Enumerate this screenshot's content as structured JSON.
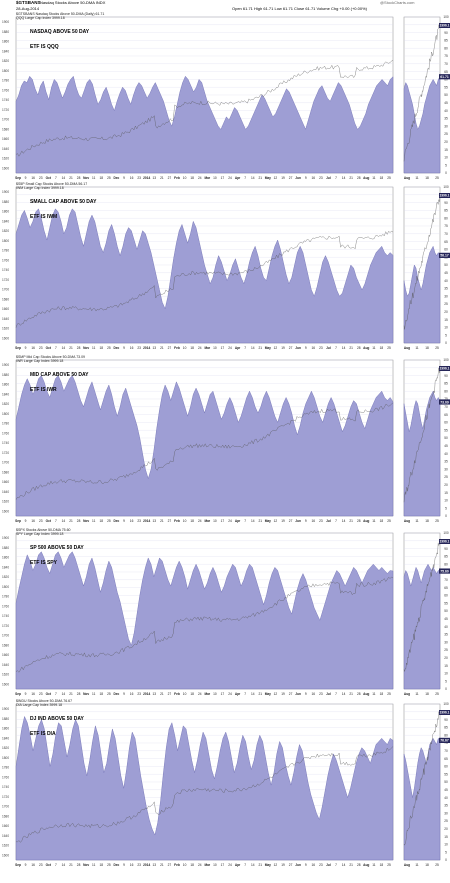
{
  "header": {
    "symbol": "$GTSBANS",
    "description": "Nasdaq Stocks Above 50-DMA  INDX",
    "date": "28-Aug-2014",
    "ohlc": "Open 61.71  High 61.71  Low 61.71  Close 61.71  Volume  Chg +0.00 (+0.00%)",
    "brand": "@StockCharts.com"
  },
  "colors": {
    "fill": "#9e9ed4",
    "fill_edge": "#6b6bb0",
    "price": "#555555",
    "grid": "#d8d8ee",
    "badge": "#262659"
  },
  "chart_data": [
    {
      "type": "area",
      "title": "NASDAQ ABOVE 50 DAY",
      "subtitle": "ETF IS QQQ",
      "legend": [
        "$GTSBANS Nasdaq Stocks Above 50-DMA (Daily) 61.71",
        "QQQ Large Cap Index 3999.18"
      ],
      "ylim": [
        0,
        100
      ],
      "right_ticks": [
        0,
        5,
        10,
        15,
        20,
        25,
        30,
        35,
        40,
        45,
        50,
        55,
        60,
        65,
        70,
        75,
        80,
        85,
        90,
        95,
        100
      ],
      "left_ticks": [
        1600,
        1620,
        1640,
        1660,
        1680,
        1700,
        1720,
        1740,
        1760,
        1780,
        1800,
        1820,
        1840,
        1860,
        1880,
        1900
      ],
      "last_value": "61.71",
      "price_label": "1996.1",
      "values": [
        46,
        50,
        56,
        59,
        58,
        62,
        60,
        54,
        50,
        56,
        59,
        52,
        47,
        55,
        60,
        58,
        53,
        48,
        52,
        57,
        60,
        62,
        55,
        50,
        48,
        53,
        58,
        60,
        57,
        50,
        44,
        47,
        52,
        55,
        50,
        44,
        40,
        46,
        51,
        55,
        53,
        48,
        44,
        50,
        55,
        58,
        56,
        52,
        48,
        51,
        55,
        58,
        54,
        50,
        46,
        40,
        34,
        30,
        36,
        44,
        52,
        58,
        62,
        60,
        56,
        52,
        55,
        60,
        58,
        52,
        46,
        42,
        38,
        34,
        30,
        28,
        32,
        36,
        34,
        38,
        42,
        40,
        36,
        32,
        28,
        30,
        34,
        38,
        42,
        46,
        50,
        48,
        44,
        40,
        36,
        38,
        42,
        46,
        50,
        54,
        52,
        48,
        44,
        40,
        36,
        32,
        28,
        34,
        40,
        46,
        50,
        54,
        56,
        52,
        48,
        46,
        50,
        54,
        58,
        56,
        52,
        48,
        44,
        38,
        32,
        28,
        30,
        34,
        38,
        44,
        48,
        52,
        56,
        58,
        60,
        58,
        56,
        60,
        61.71
      ]
    },
    {
      "type": "area",
      "title": "SMALL CAP ABOVE 50 DAY",
      "subtitle": "ETF IS IWM",
      "legend": [
        "$S5P Small Cap Stocks Above 50-DMA 56.17",
        "IWM Large Cap Index 3999.18"
      ],
      "ylim": [
        0,
        100
      ],
      "right_ticks": [
        0,
        5,
        10,
        15,
        20,
        25,
        30,
        35,
        40,
        45,
        50,
        55,
        60,
        65,
        70,
        75,
        80,
        85,
        90,
        95,
        100
      ],
      "left_ticks": [
        1600,
        1620,
        1640,
        1660,
        1680,
        1700,
        1720,
        1740,
        1760,
        1780,
        1800,
        1820,
        1840,
        1860,
        1880,
        1900
      ],
      "last_value": "56.17",
      "price_label": "1996.1",
      "values": [
        70,
        76,
        82,
        85,
        80,
        74,
        78,
        84,
        86,
        80,
        72,
        66,
        74,
        82,
        86,
        84,
        78,
        70,
        74,
        82,
        86,
        84,
        76,
        68,
        62,
        70,
        78,
        82,
        78,
        70,
        62,
        58,
        64,
        72,
        76,
        70,
        62,
        56,
        62,
        70,
        74,
        72,
        66,
        60,
        66,
        72,
        70,
        64,
        58,
        50,
        42,
        34,
        26,
        22,
        30,
        42,
        54,
        64,
        72,
        76,
        70,
        64,
        70,
        78,
        74,
        66,
        58,
        50,
        44,
        38,
        42,
        50,
        56,
        52,
        46,
        40,
        44,
        50,
        54,
        48,
        42,
        38,
        44,
        52,
        58,
        62,
        56,
        48,
        42,
        40,
        48,
        56,
        62,
        66,
        60,
        52,
        44,
        38,
        42,
        50,
        58,
        62,
        58,
        50,
        42,
        34,
        30,
        36,
        44,
        52,
        56,
        52,
        46,
        40,
        34,
        30,
        32,
        38,
        44,
        50,
        48,
        42,
        38,
        34,
        38,
        44,
        50,
        54,
        58,
        60,
        62,
        58,
        56,
        58,
        56.17
      ]
    },
    {
      "type": "area",
      "title": "MID CAP ABOVE 50 DAY",
      "subtitle": "ETF IS IWR",
      "legend": [
        "$SMP Mid Cap Stocks Above 50-DMA 73.09",
        "IWR Large Cap Index 3999.18"
      ],
      "ylim": [
        0,
        100
      ],
      "right_ticks": [
        0,
        5,
        10,
        15,
        20,
        25,
        30,
        35,
        40,
        45,
        50,
        55,
        60,
        65,
        70,
        75,
        80,
        85,
        90,
        95,
        100
      ],
      "left_ticks": [
        1600,
        1620,
        1640,
        1660,
        1680,
        1700,
        1720,
        1740,
        1760,
        1780,
        1800,
        1820,
        1840,
        1860,
        1880,
        1900
      ],
      "last_value": "73.09",
      "price_label": "1996.1",
      "values": [
        62,
        70,
        78,
        84,
        88,
        84,
        78,
        82,
        88,
        90,
        86,
        80,
        76,
        82,
        88,
        90,
        86,
        80,
        84,
        88,
        90,
        86,
        80,
        74,
        70,
        76,
        82,
        86,
        80,
        74,
        68,
        74,
        80,
        84,
        78,
        70,
        64,
        70,
        78,
        82,
        76,
        70,
        64,
        58,
        50,
        40,
        30,
        24,
        30,
        42,
        56,
        68,
        78,
        84,
        80,
        74,
        80,
        86,
        82,
        76,
        70,
        64,
        70,
        78,
        82,
        78,
        72,
        66,
        72,
        78,
        80,
        74,
        68,
        62,
        66,
        72,
        76,
        72,
        66,
        60,
        64,
        70,
        76,
        80,
        76,
        70,
        66,
        70,
        76,
        80,
        76,
        70,
        64,
        60,
        66,
        72,
        76,
        72,
        66,
        58,
        52,
        58,
        66,
        72,
        76,
        80,
        76,
        70,
        64,
        60,
        66,
        72,
        76,
        72,
        66,
        60,
        54,
        58,
        64,
        70,
        74,
        72,
        66,
        60,
        56,
        62,
        68,
        72,
        76,
        78,
        80,
        76,
        74,
        76,
        73.09
      ]
    },
    {
      "type": "area",
      "title": "SP 500 ABOVE 50 DAY",
      "subtitle": "ETF IS SPY",
      "legend": [
        "$SPX Stocks Above 50-DMA 75.60",
        "SPY Large Cap Index 3999.18"
      ],
      "ylim": [
        0,
        100
      ],
      "right_ticks": [
        0,
        5,
        10,
        15,
        20,
        25,
        30,
        35,
        40,
        45,
        50,
        55,
        60,
        65,
        70,
        75,
        80,
        85,
        90,
        95,
        100
      ],
      "left_ticks": [
        1600,
        1620,
        1640,
        1660,
        1680,
        1700,
        1720,
        1740,
        1760,
        1780,
        1800,
        1820,
        1840,
        1860,
        1880,
        1900
      ],
      "last_value": "75.60",
      "price_label": "1996.1",
      "values": [
        55,
        64,
        72,
        80,
        86,
        82,
        76,
        80,
        86,
        88,
        84,
        78,
        74,
        80,
        86,
        88,
        84,
        78,
        82,
        86,
        88,
        84,
        78,
        72,
        66,
        72,
        80,
        84,
        78,
        70,
        62,
        68,
        76,
        82,
        78,
        70,
        62,
        56,
        48,
        40,
        32,
        28,
        36,
        48,
        60,
        70,
        78,
        84,
        80,
        72,
        78,
        84,
        82,
        76,
        70,
        66,
        72,
        78,
        82,
        78,
        72,
        64,
        70,
        76,
        80,
        76,
        70,
        64,
        68,
        74,
        78,
        74,
        68,
        62,
        66,
        72,
        76,
        80,
        78,
        72,
        66,
        70,
        76,
        80,
        78,
        72,
        66,
        60,
        54,
        60,
        68,
        74,
        78,
        76,
        70,
        64,
        58,
        52,
        48,
        56,
        64,
        70,
        74,
        70,
        64,
        58,
        52,
        48,
        44,
        50,
        56,
        62,
        68,
        72,
        76,
        74,
        70,
        66,
        70,
        74,
        78,
        76,
        72,
        68,
        72,
        76,
        78,
        80,
        78,
        76,
        78,
        76,
        74,
        76,
        75.6
      ]
    },
    {
      "type": "area",
      "title": "DJ IND ABOVE 50 DAY",
      "subtitle": "ETF IS DIA",
      "legend": [
        "$INDU Stocks Above 50-DMA 76.67",
        "DIA Large Cap Index 3999.18"
      ],
      "ylim": [
        0,
        100
      ],
      "right_ticks": [
        0,
        5,
        10,
        15,
        20,
        25,
        30,
        35,
        40,
        45,
        50,
        55,
        60,
        65,
        70,
        75,
        80,
        85,
        90,
        95,
        100
      ],
      "left_ticks": [
        1600,
        1620,
        1640,
        1660,
        1680,
        1700,
        1720,
        1740,
        1760,
        1780,
        1800,
        1820,
        1840,
        1860,
        1880,
        1900
      ],
      "last_value": "76.67",
      "price_label": "1996.1",
      "values": [
        60,
        72,
        84,
        92,
        88,
        80,
        70,
        78,
        86,
        90,
        84,
        72,
        60,
        68,
        80,
        88,
        86,
        76,
        66,
        74,
        84,
        90,
        86,
        74,
        62,
        54,
        64,
        76,
        86,
        80,
        68,
        56,
        62,
        74,
        84,
        78,
        66,
        54,
        46,
        58,
        72,
        82,
        78,
        66,
        54,
        44,
        34,
        26,
        20,
        16,
        24,
        38,
        56,
        72,
        84,
        88,
        80,
        70,
        78,
        86,
        84,
        74,
        64,
        56,
        64,
        74,
        82,
        78,
        68,
        58,
        52,
        60,
        70,
        78,
        82,
        76,
        66,
        56,
        62,
        72,
        80,
        76,
        66,
        58,
        64,
        74,
        80,
        76,
        66,
        56,
        48,
        56,
        68,
        76,
        72,
        62,
        54,
        48,
        56,
        66,
        74,
        70,
        60,
        50,
        42,
        36,
        30,
        26,
        34,
        44,
        54,
        62,
        68,
        64,
        58,
        52,
        46,
        40,
        46,
        54,
        62,
        68,
        72,
        70,
        66,
        62,
        68,
        74,
        76,
        78,
        76,
        74,
        78,
        76.67
      ]
    }
  ],
  "x_labels_main": [
    "Sep",
    "9",
    "16",
    "23",
    "Oct",
    "7",
    "14",
    "21",
    "28",
    "Nov",
    "11",
    "18",
    "25",
    "Dec",
    "9",
    "16",
    "23",
    "2014",
    "13",
    "21",
    "27",
    "Feb",
    "10",
    "18",
    "24",
    "Mar",
    "10",
    "17",
    "24",
    "Apr",
    "7",
    "14",
    "21",
    "May",
    "12",
    "19",
    "27",
    "Jun",
    "9",
    "16",
    "23",
    "Jul",
    "7",
    "14",
    "21",
    "28",
    "Aug",
    "11",
    "18",
    "25"
  ],
  "x_labels_inset": [
    "Aug",
    "11",
    "18",
    "25"
  ]
}
